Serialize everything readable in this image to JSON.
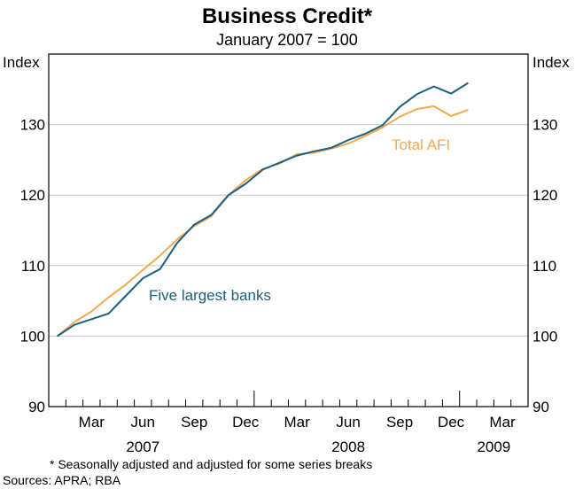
{
  "chart_data": {
    "type": "line",
    "title": "Business Credit*",
    "subtitle": "January 2007 = 100",
    "ylabel_left": "Index",
    "ylabel_right": "Index",
    "ylim": [
      90,
      140
    ],
    "yticks": [
      90,
      100,
      110,
      120,
      130
    ],
    "x_month_labels": [
      {
        "label": "Mar",
        "month_index": 2
      },
      {
        "label": "Jun",
        "month_index": 5
      },
      {
        "label": "Sep",
        "month_index": 8
      },
      {
        "label": "Dec",
        "month_index": 11
      },
      {
        "label": "Mar",
        "month_index": 14
      },
      {
        "label": "Jun",
        "month_index": 17
      },
      {
        "label": "Sep",
        "month_index": 20
      },
      {
        "label": "Dec",
        "month_index": 23
      },
      {
        "label": "Mar",
        "month_index": 26
      }
    ],
    "x_year_labels": [
      {
        "label": "2007",
        "month_index": 5
      },
      {
        "label": "2008",
        "month_index": 17
      },
      {
        "label": "2009",
        "month_index": 25.5
      }
    ],
    "x_range_months": [
      -0.5,
      27.5
    ],
    "series": [
      {
        "name": "Five largest banks",
        "color": "#1a5f80",
        "months": [
          0,
          1,
          2,
          3,
          4,
          5,
          6,
          7,
          8,
          9,
          10,
          11,
          12,
          13,
          14,
          15,
          16,
          17,
          18,
          19,
          20,
          21,
          22,
          23,
          24
        ],
        "values": [
          100.0,
          101.6,
          102.4,
          103.2,
          105.7,
          108.2,
          109.5,
          113.2,
          115.8,
          117.2,
          120.0,
          121.6,
          123.6,
          124.6,
          125.6,
          126.2,
          126.7,
          127.8,
          128.7,
          129.9,
          132.5,
          134.3,
          135.4,
          134.4,
          135.9
        ]
      },
      {
        "name": "Total AFI",
        "color": "#f2a950",
        "months": [
          0,
          1,
          2,
          3,
          4,
          5,
          6,
          7,
          8,
          9,
          10,
          11,
          12,
          13,
          14,
          15,
          16,
          17,
          18,
          19,
          20,
          21,
          22,
          23,
          24
        ],
        "values": [
          100.0,
          102.0,
          103.5,
          105.5,
          107.3,
          109.4,
          111.4,
          113.7,
          115.6,
          117.0,
          120.0,
          122.1,
          123.7,
          124.5,
          125.8,
          126.0,
          126.6,
          127.3,
          128.4,
          129.6,
          131.1,
          132.2,
          132.6,
          131.2,
          132.1
        ]
      }
    ],
    "annotations": [
      "Five largest banks",
      "Total AFI"
    ],
    "footnote": "*   Seasonally adjusted and adjusted for some series breaks",
    "source": "Sources: APRA; RBA"
  }
}
